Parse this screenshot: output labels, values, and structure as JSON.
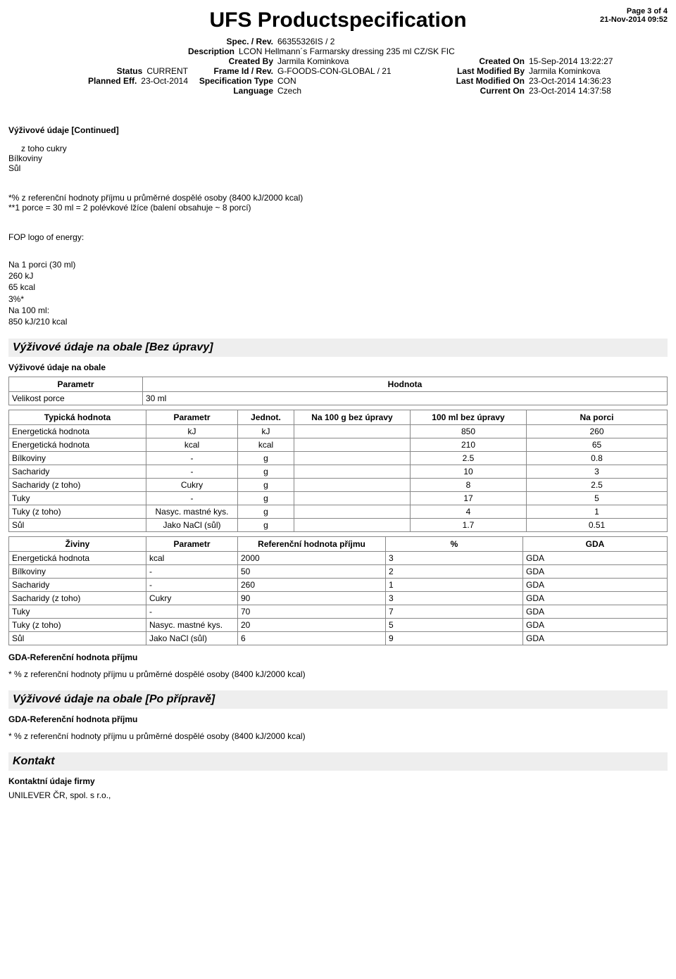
{
  "page": {
    "label": "Page 3 of 4",
    "timestamp": "21-Nov-2014 09:52"
  },
  "title": "UFS Productspecification",
  "header": {
    "spec_rev_label": "Spec. / Rev.",
    "spec_rev": "66355326IS  /  2",
    "description_label": "Description",
    "description": "LCON Hellmann´s Farmarsky dressing 235 ml CZ/SK FIC",
    "created_by_label": "Created By",
    "created_by": "Jarmila Kominkova",
    "created_on_label": "Created On",
    "created_on": "15-Sep-2014 13:22:27",
    "status_label": "Status",
    "status": "CURRENT",
    "frame_label": "Frame Id / Rev.",
    "frame": "G-FOODS-CON-GLOBAL  /   21",
    "last_mod_by_label": "Last Modified By",
    "last_mod_by": "Jarmila Kominkova",
    "planned_label": "Planned Eff.",
    "planned": "23-Oct-2014",
    "spec_type_label": "Specification Type",
    "spec_type": "CON",
    "last_mod_on_label": "Last Modified On",
    "last_mod_on": "23-Oct-2014 14:36:23",
    "language_label": "Language",
    "language": "Czech",
    "current_on_label": "Current On",
    "current_on": "23-Oct-2014 14:37:58"
  },
  "continued": "Výživové údaje [Continued]",
  "body": {
    "line1": "z toho cukry",
    "line2": "Bílkoviny",
    "line3": "Sůl",
    "note1": "*% z referenční hodnoty příjmu u průměrné dospělé osoby (8400 kJ/2000 kcal)",
    "note2": "**1 porce = 30 ml = 2 polévkové lžíce (balení obsahuje ~ 8 porcí)",
    "fop_title": "FOP logo of energy:",
    "fop_l1": "Na 1 porci (30 ml)",
    "fop_l2": "260 kJ",
    "fop_l3": "65 kcal",
    "fop_l4": "3%*",
    "fop_l5": " Na 100 ml:",
    "fop_l6": "850 kJ/210 kcal"
  },
  "section1": {
    "heading": "Výživové údaje na obale  [Bez úpravy]",
    "sub": "Výživové údaje na obale",
    "param_col": "Parametr",
    "value_col": "Hodnota",
    "row_label": "Velikost porce",
    "row_value": "30 ml"
  },
  "table2": {
    "headers": [
      "Typická hodnota",
      "Parametr",
      "Jednot.",
      "Na 100 g bez úpravy",
      "100 ml bez úpravy",
      "Na porci"
    ],
    "rows": [
      [
        "Energetická hodnota",
        "kJ",
        "kJ",
        "",
        "850",
        "260"
      ],
      [
        "Energetická hodnota",
        "kcal",
        "kcal",
        "",
        "210",
        "65"
      ],
      [
        "Bílkoviny",
        "-",
        "g",
        "",
        "2.5",
        "0.8"
      ],
      [
        "Sacharidy",
        "-",
        "g",
        "",
        "10",
        "3"
      ],
      [
        "Sacharidy (z toho)",
        "Cukry",
        "g",
        "",
        "8",
        "2.5"
      ],
      [
        "Tuky",
        "-",
        "g",
        "",
        "17",
        "5"
      ],
      [
        "Tuky (z toho)",
        "Nasyc. mastné kys.",
        "g",
        "",
        "4",
        "1"
      ],
      [
        "Sůl",
        "Jako NaCl (sůl)",
        "g",
        "",
        "1.7",
        "0.51"
      ]
    ]
  },
  "table3": {
    "headers": [
      "Živiny",
      "Parametr",
      "Referenční hodnota příjmu",
      "%",
      "GDA"
    ],
    "rows": [
      [
        "Energetická hodnota",
        "kcal",
        "2000",
        "3",
        "GDA"
      ],
      [
        "Bílkoviny",
        "-",
        "50",
        "2",
        "GDA"
      ],
      [
        "Sacharidy",
        "-",
        "260",
        "1",
        "GDA"
      ],
      [
        "Sacharidy (z toho)",
        "Cukry",
        "90",
        "3",
        "GDA"
      ],
      [
        "Tuky",
        "-",
        "70",
        "7",
        "GDA"
      ],
      [
        "Tuky (z toho)",
        "Nasyc. mastné kys.",
        "20",
        "5",
        "GDA"
      ],
      [
        "Sůl",
        "Jako NaCl (sůl)",
        "6",
        "9",
        "GDA"
      ]
    ]
  },
  "gda": {
    "heading": "GDA-Referenční hodnota příjmu",
    "note": "* % z referenční hodnoty příjmu u průměrné dospělé osoby (8400 kJ/2000 kcal)"
  },
  "section2": {
    "heading": "Výživové údaje na obale  [Po přípravě]"
  },
  "kontakt": {
    "heading": "Kontakt",
    "sub": "Kontaktní údaje firmy",
    "company": "UNILEVER ČR, spol. s r.o.,"
  }
}
